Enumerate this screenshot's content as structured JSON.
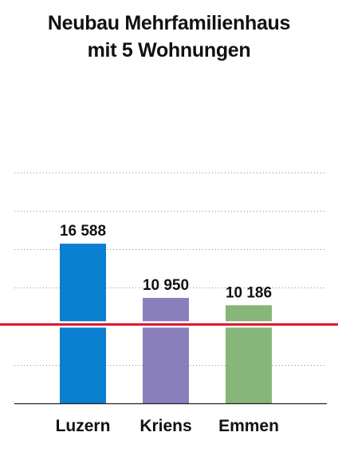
{
  "title": {
    "line1": "Neubau Mehrfamilienhaus",
    "line2": "mit 5 Wohnungen"
  },
  "chart_data": {
    "type": "bar",
    "title": "Neubau Mehrfamilienhaus mit 5 Wohnungen",
    "xlabel": "",
    "ylabel": "",
    "categories": [
      "Luzern",
      "Kriens",
      "Emmen"
    ],
    "values": [
      16588,
      10950,
      10186
    ],
    "value_labels": [
      "16 588",
      "10 950",
      "10 186"
    ],
    "bar_colors": [
      "#0a7fd0",
      "#8a7fbd",
      "#86b67a"
    ],
    "reference_line": {
      "value": 8200,
      "color": "#d6122a"
    },
    "ylim": [
      0,
      24000
    ],
    "grid": true,
    "grid_style": "dotted",
    "grid_values": [
      4000,
      8000,
      12000,
      16000,
      20000,
      24000
    ],
    "legend": "none"
  }
}
